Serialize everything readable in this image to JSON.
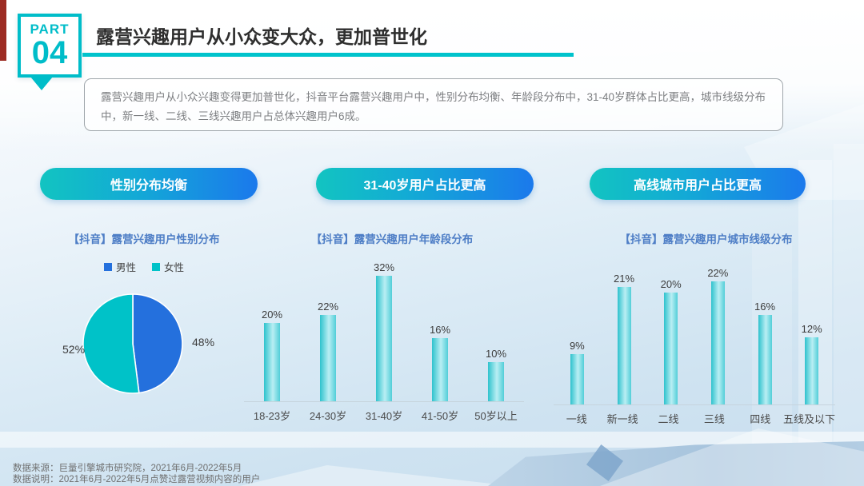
{
  "slide": {
    "part_label": "PART",
    "part_number": "04",
    "title": "露营兴趣用户从小众变大众，更加普世化",
    "description": "露营兴趣用户从小众兴趣变得更加普世化，抖音平台露营兴趣用户中，性别分布均衡、年龄段分布中，31-40岁群体占比更高，城市线级分布中，新一线、二线、三线兴趣用户占总体兴趣用户6成。",
    "footer": {
      "source": "数据来源：巨量引擎城市研究院，2021年6月-2022年5月",
      "note": "数据说明：2021年6月-2022年5月点赞过露营视频内容的用户"
    }
  },
  "pills": [
    {
      "label": "性别分布均衡"
    },
    {
      "label": "31-40岁用户占比更高"
    },
    {
      "label": "高线城市用户占比更高"
    }
  ],
  "colors": {
    "accent_teal": "#00c3cc",
    "badge_teal": "#00bdc9",
    "pill_gradient_start": "#12c4c1",
    "pill_gradient_end": "#1b79ec",
    "chart_title_blue": "#4e7ec6",
    "bar_teal": "#3ecdd6",
    "pie_male_blue": "#2470dd",
    "pie_female_teal": "#00c2c8"
  },
  "chart_data": [
    {
      "type": "pie",
      "title": "【抖音】露营兴趣用户性别分布",
      "legend": [
        "男性",
        "女性"
      ],
      "labels": [
        "男性",
        "女性"
      ],
      "values": [
        48,
        52
      ],
      "value_labels": [
        "48%",
        "52%"
      ],
      "colors": [
        "#2470dd",
        "#00c2c8"
      ],
      "legend_position": "top"
    },
    {
      "type": "bar",
      "title": "【抖音】露营兴趣用户年龄段分布",
      "categories": [
        "18-23岁",
        "24-30岁",
        "31-40岁",
        "41-50岁",
        "50岁以上"
      ],
      "values": [
        20,
        22,
        32,
        16,
        10
      ],
      "value_labels": [
        "20%",
        "22%",
        "32%",
        "16%",
        "10%"
      ],
      "xlabel": "",
      "ylabel": "",
      "ylim": [
        0,
        35
      ],
      "grid": false
    },
    {
      "type": "bar",
      "title": "【抖音】露营兴趣用户城市线级分布",
      "categories": [
        "一线",
        "新一线",
        "二线",
        "三线",
        "四线",
        "五线及以下"
      ],
      "values": [
        9,
        21,
        20,
        22,
        16,
        12
      ],
      "value_labels": [
        "9%",
        "21%",
        "20%",
        "22%",
        "16%",
        "12%"
      ],
      "xlabel": "",
      "ylabel": "",
      "ylim": [
        0,
        25
      ],
      "grid": false
    }
  ]
}
